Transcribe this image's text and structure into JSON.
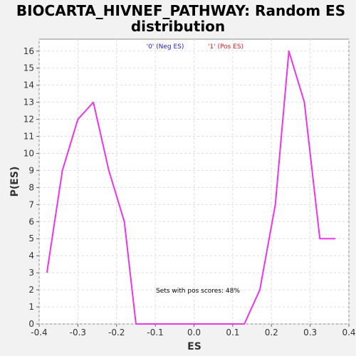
{
  "chart_data": {
    "type": "line",
    "title_line1": "BIOCARTA_HIVNEF_PATHWAY: Random ES",
    "title_line2": "distribution",
    "xlabel": "ES",
    "ylabel": "P(ES)",
    "xlim": [
      -0.4,
      0.4
    ],
    "ylim": [
      0,
      16.7
    ],
    "x_ticks": [
      -0.4,
      -0.3,
      -0.2,
      -0.1,
      0.0,
      0.1,
      0.2,
      0.3,
      0.4
    ],
    "x_tick_labels": [
      "-0.4",
      "-0.3",
      "-0.2",
      "-0.1",
      "0.0",
      "0.1",
      "0.2",
      "0.3",
      "0.4"
    ],
    "y_ticks": [
      0,
      1,
      2,
      3,
      4,
      5,
      6,
      7,
      8,
      9,
      10,
      11,
      12,
      13,
      14,
      15,
      16
    ],
    "grid": true,
    "legend": [
      {
        "label": "'0' (Neg ES)",
        "color": "#2222cc"
      },
      {
        "label": "'1' (Pos ES)",
        "color": "#dd2222"
      }
    ],
    "annotation": "Sets with pos scores: 48%",
    "series": [
      {
        "color": "#ee33ee",
        "x": [
          -0.38,
          -0.34,
          -0.3,
          -0.26,
          -0.22,
          -0.18,
          -0.15,
          -0.11,
          -0.07,
          -0.03,
          0.01,
          0.05,
          0.09,
          0.13,
          0.17,
          0.21,
          0.245,
          0.285,
          0.325,
          0.365
        ],
        "y": [
          3,
          9,
          12,
          13,
          9,
          6,
          0,
          0,
          0,
          0,
          0,
          0,
          0,
          0,
          2,
          7,
          16,
          13,
          5,
          5
        ]
      }
    ]
  }
}
